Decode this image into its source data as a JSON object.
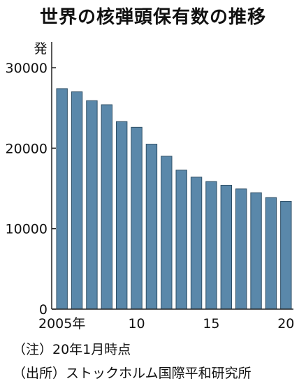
{
  "chart_data": {
    "type": "bar",
    "title": "世界の核弾頭保有数の推移",
    "ylabel": "発",
    "ylim": [
      0,
      30000
    ],
    "y_ticks": [
      0,
      10000,
      20000,
      30000
    ],
    "y_tick_labels": [
      "0",
      "10000",
      "20000",
      "30000"
    ],
    "categories": [
      "2005",
      "2006",
      "2007",
      "2008",
      "2009",
      "2010",
      "2011",
      "2012",
      "2013",
      "2014",
      "2015",
      "2016",
      "2017",
      "2018",
      "2019",
      "2020"
    ],
    "x_tick_labels": [
      {
        "category": "2005",
        "label": "2005年"
      },
      {
        "category": "2010",
        "label": "10"
      },
      {
        "category": "2015",
        "label": "15"
      },
      {
        "category": "2020",
        "label": "20"
      }
    ],
    "values": [
      27400,
      27000,
      25900,
      25400,
      23300,
      22600,
      20500,
      19000,
      17270,
      16400,
      15850,
      15395,
      14935,
      14465,
      13865,
      13400
    ],
    "grid": false,
    "bar_color": "#5a88aa",
    "bar_stroke": "#2f4f66"
  },
  "notes": {
    "note1": "（注）20年1月時点",
    "note2": "（出所）ストックホルム国際平和研究所"
  }
}
